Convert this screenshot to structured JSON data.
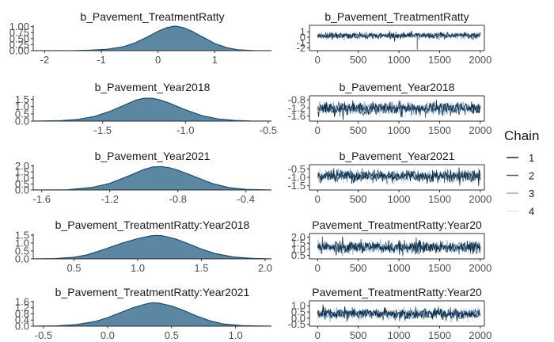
{
  "legend": {
    "title": "Chain",
    "entries": [
      {
        "label": "1",
        "color": "#0d2a45"
      },
      {
        "label": "2",
        "color": "#3c5f7d"
      },
      {
        "label": "3",
        "color": "#8fb0c9"
      },
      {
        "label": "4",
        "color": "#dce8f1"
      }
    ]
  },
  "chart_data": [
    {
      "type": "area",
      "title": "b_Pavement_TreatmentRatty",
      "xlim": [
        -2.2,
        2.0
      ],
      "ylim": [
        0,
        1.05
      ],
      "xticks": [
        -2,
        -1,
        0,
        1
      ],
      "yticks": [
        0.0,
        0.25,
        0.5,
        0.75,
        1.0
      ],
      "ytick_labels": [
        "0.00",
        "0.25",
        "0.50",
        "0.75",
        "1.00"
      ],
      "x": [
        -2.2,
        -1.5,
        -1.2,
        -0.9,
        -0.6,
        -0.4,
        -0.2,
        0.0,
        0.15,
        0.3,
        0.45,
        0.6,
        0.8,
        1.0,
        1.2,
        1.4,
        1.7,
        2.0
      ],
      "density": [
        0.0,
        0.0,
        0.02,
        0.06,
        0.17,
        0.33,
        0.55,
        0.8,
        0.95,
        1.02,
        0.95,
        0.8,
        0.55,
        0.3,
        0.13,
        0.04,
        0.0,
        0.0
      ],
      "fill": "#5c87a3"
    },
    {
      "type": "line",
      "title": "b_Pavement_TreatmentRatty",
      "xlim": [
        -100,
        2050
      ],
      "ylim": [
        -2.5,
        2.2
      ],
      "xticks": [
        0,
        500,
        1000,
        1500,
        2000
      ],
      "yticks": [
        -2,
        -1,
        0,
        1
      ],
      "ytick_labels": [
        "-2",
        "-1",
        "0",
        "1"
      ],
      "center": 0.3,
      "spread": 0.55,
      "spikes": [
        {
          "x": 1225,
          "y": -2.3
        }
      ]
    },
    {
      "type": "area",
      "title": "b_Pavement_Year2018",
      "xlim": [
        -1.92,
        -0.48
      ],
      "ylim": [
        0,
        1.75
      ],
      "xticks": [
        -1.5,
        -1.0,
        -0.5
      ],
      "xtick_labels": [
        "-1.5",
        "-1.0",
        "-0.5"
      ],
      "yticks": [
        0.0,
        0.5,
        1.0,
        1.5
      ],
      "ytick_labels": [
        "0.0",
        "0.5",
        "1.0",
        "1.5"
      ],
      "x": [
        -1.92,
        -1.75,
        -1.65,
        -1.55,
        -1.45,
        -1.35,
        -1.3,
        -1.25,
        -1.2,
        -1.15,
        -1.1,
        -1.0,
        -0.9,
        -0.8,
        -0.7,
        -0.6,
        -0.48
      ],
      "density": [
        0.0,
        0.04,
        0.12,
        0.32,
        0.7,
        1.2,
        1.45,
        1.58,
        1.58,
        1.45,
        1.25,
        0.78,
        0.38,
        0.15,
        0.05,
        0.01,
        0.0
      ],
      "fill": "#5c87a3"
    },
    {
      "type": "line",
      "title": "b_Pavement_Year2018",
      "xlim": [
        -100,
        2050
      ],
      "ylim": [
        -1.85,
        -0.6
      ],
      "xticks": [
        0,
        500,
        1000,
        1500,
        2000
      ],
      "yticks": [
        -1.6,
        -1.2,
        -0.8
      ],
      "ytick_labels": [
        "-1.6",
        "-1.2",
        "-0.8"
      ],
      "center": -1.22,
      "spread": 0.3,
      "spikes": []
    },
    {
      "type": "area",
      "title": "b_Pavement_Year2021",
      "xlim": [
        -1.65,
        -0.25
      ],
      "ylim": [
        0,
        2.1
      ],
      "xticks": [
        -1.6,
        -1.2,
        -0.8,
        -0.4
      ],
      "xtick_labels": [
        "-1.6",
        "-1.2",
        "-0.8",
        "-0.4"
      ],
      "yticks": [
        0.0,
        0.5,
        1.0,
        1.5,
        2.0
      ],
      "ytick_labels": [
        "0.0",
        "0.5",
        "1.0",
        "1.5",
        "2.0"
      ],
      "x": [
        -1.65,
        -1.45,
        -1.3,
        -1.2,
        -1.1,
        -1.0,
        -0.95,
        -0.9,
        -0.85,
        -0.8,
        -0.7,
        -0.6,
        -0.5,
        -0.4,
        -0.25
      ],
      "density": [
        0.0,
        0.02,
        0.22,
        0.55,
        1.1,
        1.7,
        1.9,
        1.95,
        1.85,
        1.65,
        1.1,
        0.55,
        0.2,
        0.05,
        0.0
      ],
      "fill": "#5c87a3"
    },
    {
      "type": "line",
      "title": "b_Pavement_Year2021",
      "xlim": [
        -100,
        2050
      ],
      "ylim": [
        -1.75,
        -0.25
      ],
      "xticks": [
        0,
        500,
        1000,
        1500,
        2000
      ],
      "yticks": [
        -1.5,
        -1.0,
        -0.5
      ],
      "ytick_labels": [
        "-1.5",
        "-1.0",
        "-0.5"
      ],
      "center": -0.92,
      "spread": 0.35,
      "spikes": []
    },
    {
      "type": "area",
      "title": "b_Pavement_TreatmentRatty:Year2018",
      "xlim": [
        0.18,
        2.05
      ],
      "ylim": [
        0,
        1.6
      ],
      "xticks": [
        0.5,
        1.0,
        1.5,
        2.0
      ],
      "xtick_labels": [
        "0.5",
        "1.0",
        "1.5",
        "2.0"
      ],
      "yticks": [
        0.0,
        0.5,
        1.0,
        1.5
      ],
      "ytick_labels": [
        "0.0",
        "0.5",
        "1.0",
        "1.5"
      ],
      "x": [
        0.18,
        0.35,
        0.5,
        0.6,
        0.7,
        0.8,
        0.9,
        1.0,
        1.1,
        1.15,
        1.2,
        1.3,
        1.4,
        1.5,
        1.6,
        1.75,
        1.9,
        2.05
      ],
      "density": [
        0.0,
        0.02,
        0.1,
        0.25,
        0.5,
        0.78,
        1.05,
        1.28,
        1.45,
        1.48,
        1.45,
        1.25,
        0.95,
        0.62,
        0.35,
        0.12,
        0.03,
        0.0
      ],
      "fill": "#5c87a3"
    },
    {
      "type": "line",
      "title": "Pavement_TreatmentRatty:Year20",
      "xlim": [
        -100,
        2050
      ],
      "ylim": [
        0.2,
        2.3
      ],
      "xticks": [
        0,
        500,
        1000,
        1500,
        2000
      ],
      "yticks": [
        0.5,
        1.0,
        1.5,
        2.0
      ],
      "ytick_labels": [
        "0.5",
        "1.0",
        "1.5",
        "2.0"
      ],
      "center": 1.15,
      "spread": 0.5,
      "spikes": []
    },
    {
      "type": "area",
      "title": "b_Pavement_TreatmentRatty:Year2021",
      "xlim": [
        -0.58,
        1.28
      ],
      "ylim": [
        0,
        1.65
      ],
      "xticks": [
        -0.5,
        0.0,
        0.5,
        1.0
      ],
      "xtick_labels": [
        "-0.5",
        "0.0",
        "0.5",
        "1.0"
      ],
      "yticks": [
        0.0,
        0.4,
        0.8,
        1.2,
        1.6
      ],
      "ytick_labels": [
        "0.0",
        "0.4",
        "0.8",
        "1.2",
        "1.6"
      ],
      "x": [
        -0.58,
        -0.4,
        -0.25,
        -0.1,
        0.0,
        0.1,
        0.2,
        0.3,
        0.35,
        0.4,
        0.5,
        0.6,
        0.7,
        0.8,
        0.9,
        1.05,
        1.28
      ],
      "density": [
        0.0,
        0.02,
        0.1,
        0.3,
        0.55,
        0.88,
        1.2,
        1.45,
        1.53,
        1.5,
        1.32,
        1.0,
        0.65,
        0.35,
        0.15,
        0.03,
        0.0
      ],
      "fill": "#5c87a3"
    },
    {
      "type": "line",
      "title": "Pavement_TreatmentRatty:Year20",
      "xlim": [
        -100,
        2050
      ],
      "ylim": [
        -0.65,
        1.4
      ],
      "xticks": [
        0,
        500,
        1000,
        1500,
        2000
      ],
      "yticks": [
        -0.5,
        0.0,
        0.5,
        1.0
      ],
      "ytick_labels": [
        "-0.5",
        "0.0",
        "0.5",
        "1.0"
      ],
      "center": 0.35,
      "spread": 0.45,
      "spikes": []
    }
  ]
}
